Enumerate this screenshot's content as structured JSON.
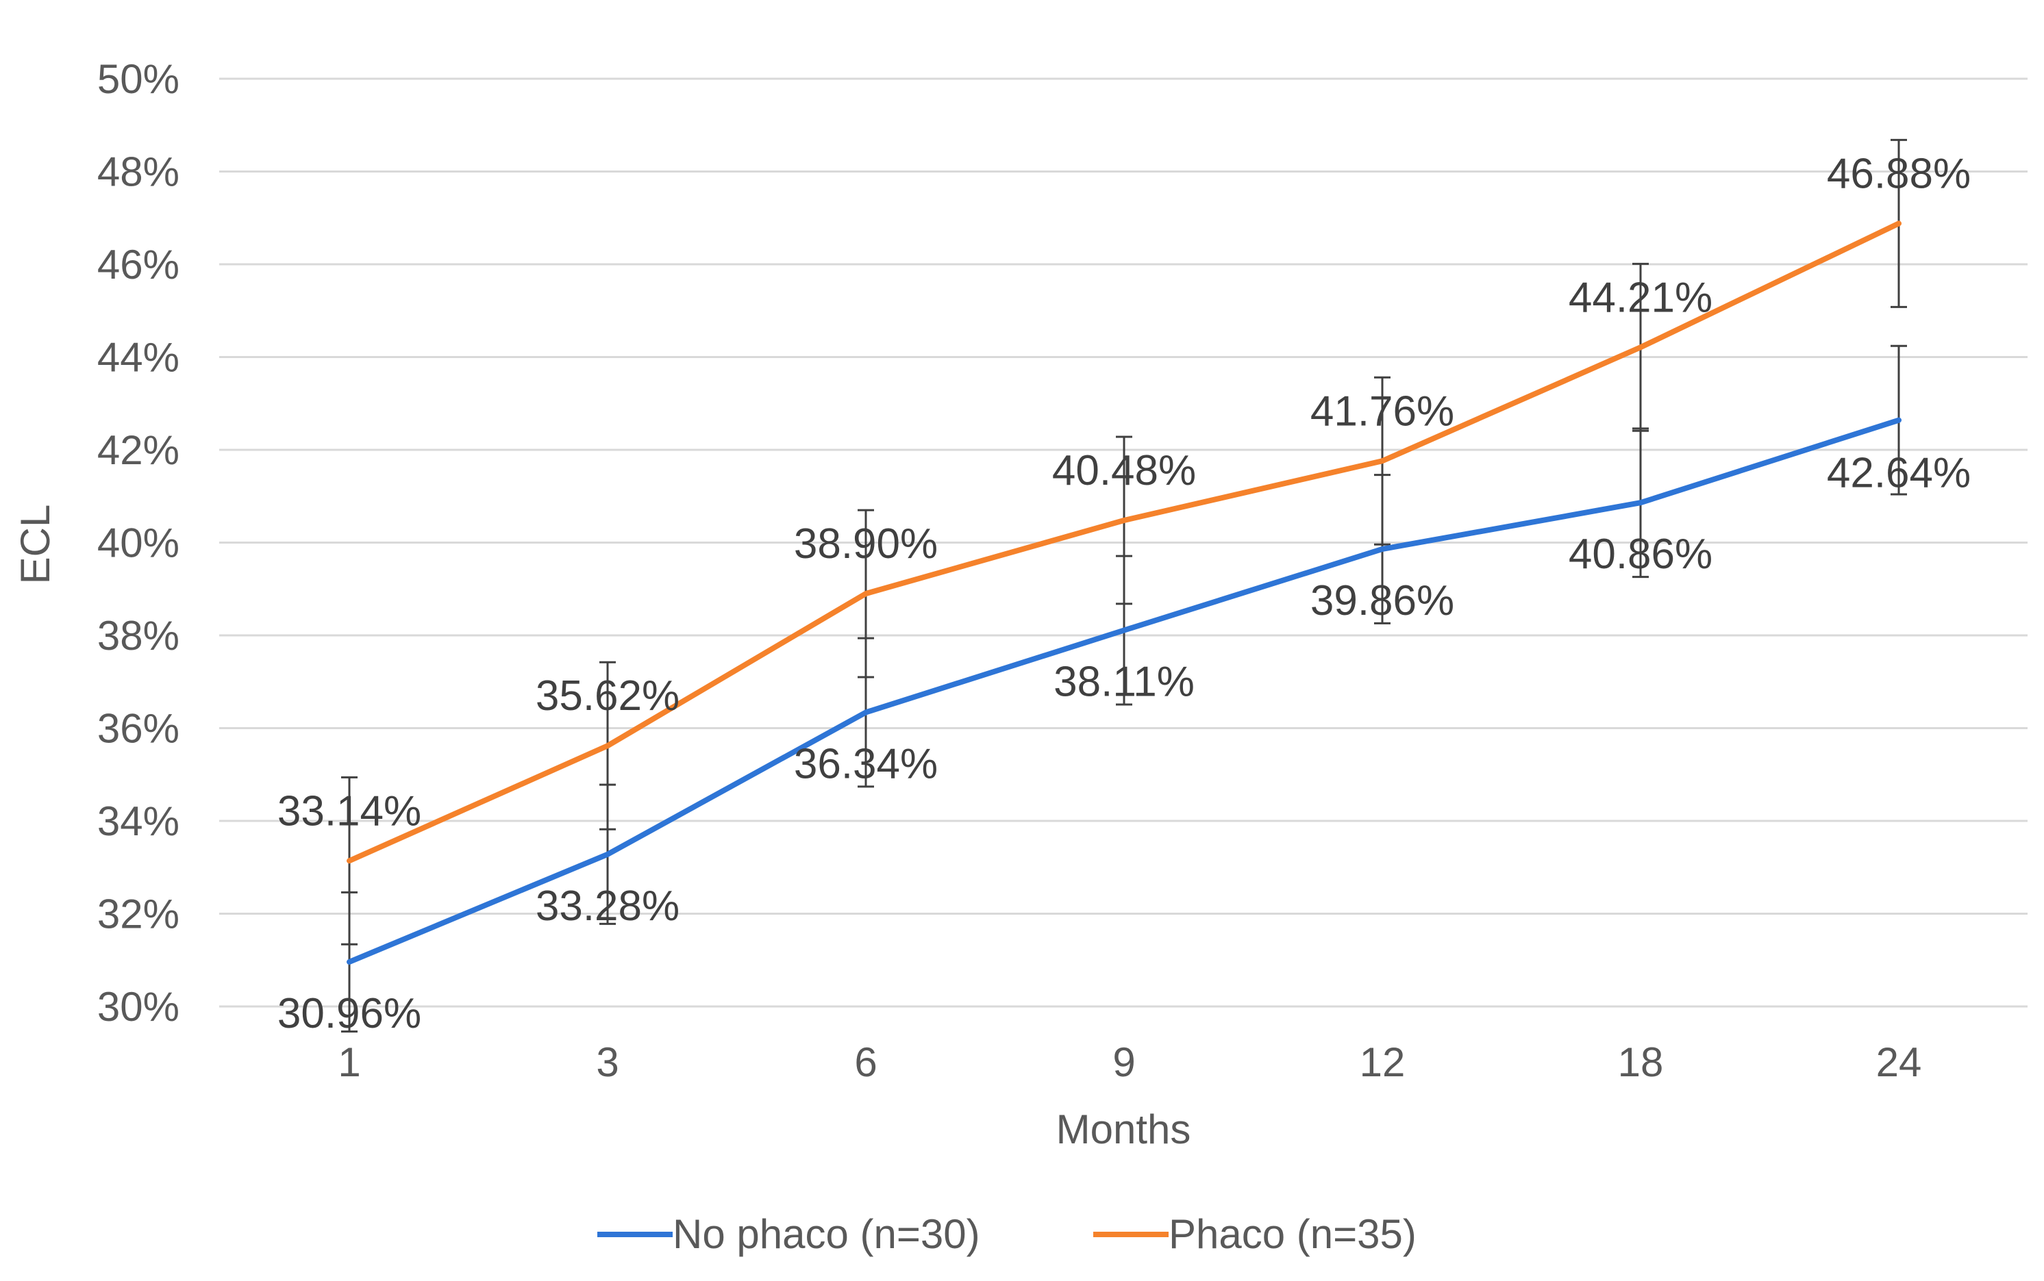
{
  "chart_data": {
    "type": "line",
    "xlabel": "Months",
    "ylabel": "ECL",
    "categories": [
      "1",
      "3",
      "6",
      "9",
      "12",
      "18",
      "24"
    ],
    "y_ticks": [
      "30%",
      "32%",
      "34%",
      "36%",
      "38%",
      "40%",
      "42%",
      "44%",
      "46%",
      "48%",
      "50%"
    ],
    "ylim": [
      30,
      50
    ],
    "grid": "horizontal",
    "legend_position": "bottom",
    "series": [
      {
        "name": "No phaco (n=30)",
        "color": "#2E75D6",
        "values": [
          30.96,
          33.28,
          36.34,
          38.11,
          39.86,
          40.86,
          42.64
        ],
        "labels": [
          "30.96%",
          "33.28%",
          "36.34%",
          "38.11%",
          "39.86%",
          "40.86%",
          "42.64%"
        ],
        "error": [
          1.5,
          1.5,
          1.6,
          1.6,
          1.6,
          1.6,
          1.6
        ]
      },
      {
        "name": "Phaco (n=35)",
        "color": "#F5822B",
        "values": [
          33.14,
          35.62,
          38.9,
          40.48,
          41.76,
          44.21,
          46.88
        ],
        "labels": [
          "33.14%",
          "35.62%",
          "38.90%",
          "40.48%",
          "41.76%",
          "44.21%",
          "46.88%"
        ],
        "error": [
          1.8,
          1.8,
          1.8,
          1.8,
          1.8,
          1.8,
          1.8
        ]
      }
    ]
  }
}
